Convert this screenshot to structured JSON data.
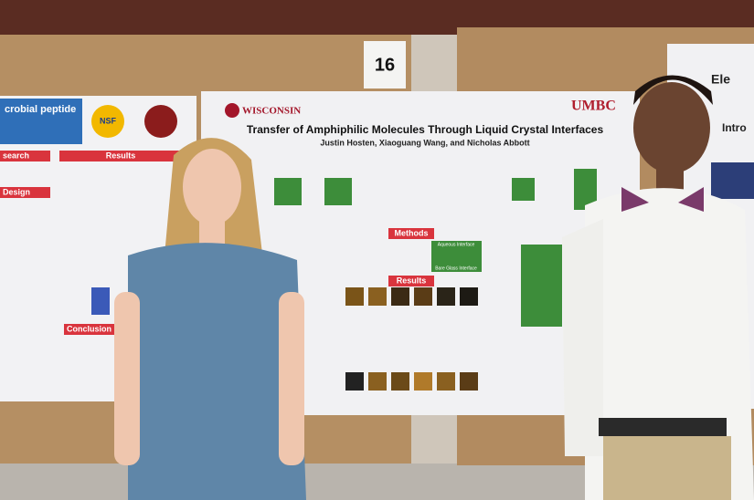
{
  "board_number": "16",
  "center_poster": {
    "logo_left": "WISCONSIN",
    "logo_right": "UMBC",
    "title": "Transfer of Amphiphilic Molecules Through Liquid Crystal Interfaces",
    "authors": "Justin Hosten, Xiaoguang Wang, and Nicholas Abbott",
    "sections": [
      "Methods",
      "Results"
    ],
    "labels": [
      "Aqueous Interface",
      "Bare Glass Interface"
    ]
  },
  "left_poster": {
    "title": "crobial peptide",
    "logo": "NSF",
    "sections": [
      "search",
      "Results",
      "Design",
      "Conclusion"
    ]
  },
  "right_poster": {
    "title": "Ele",
    "section": "Intro"
  }
}
